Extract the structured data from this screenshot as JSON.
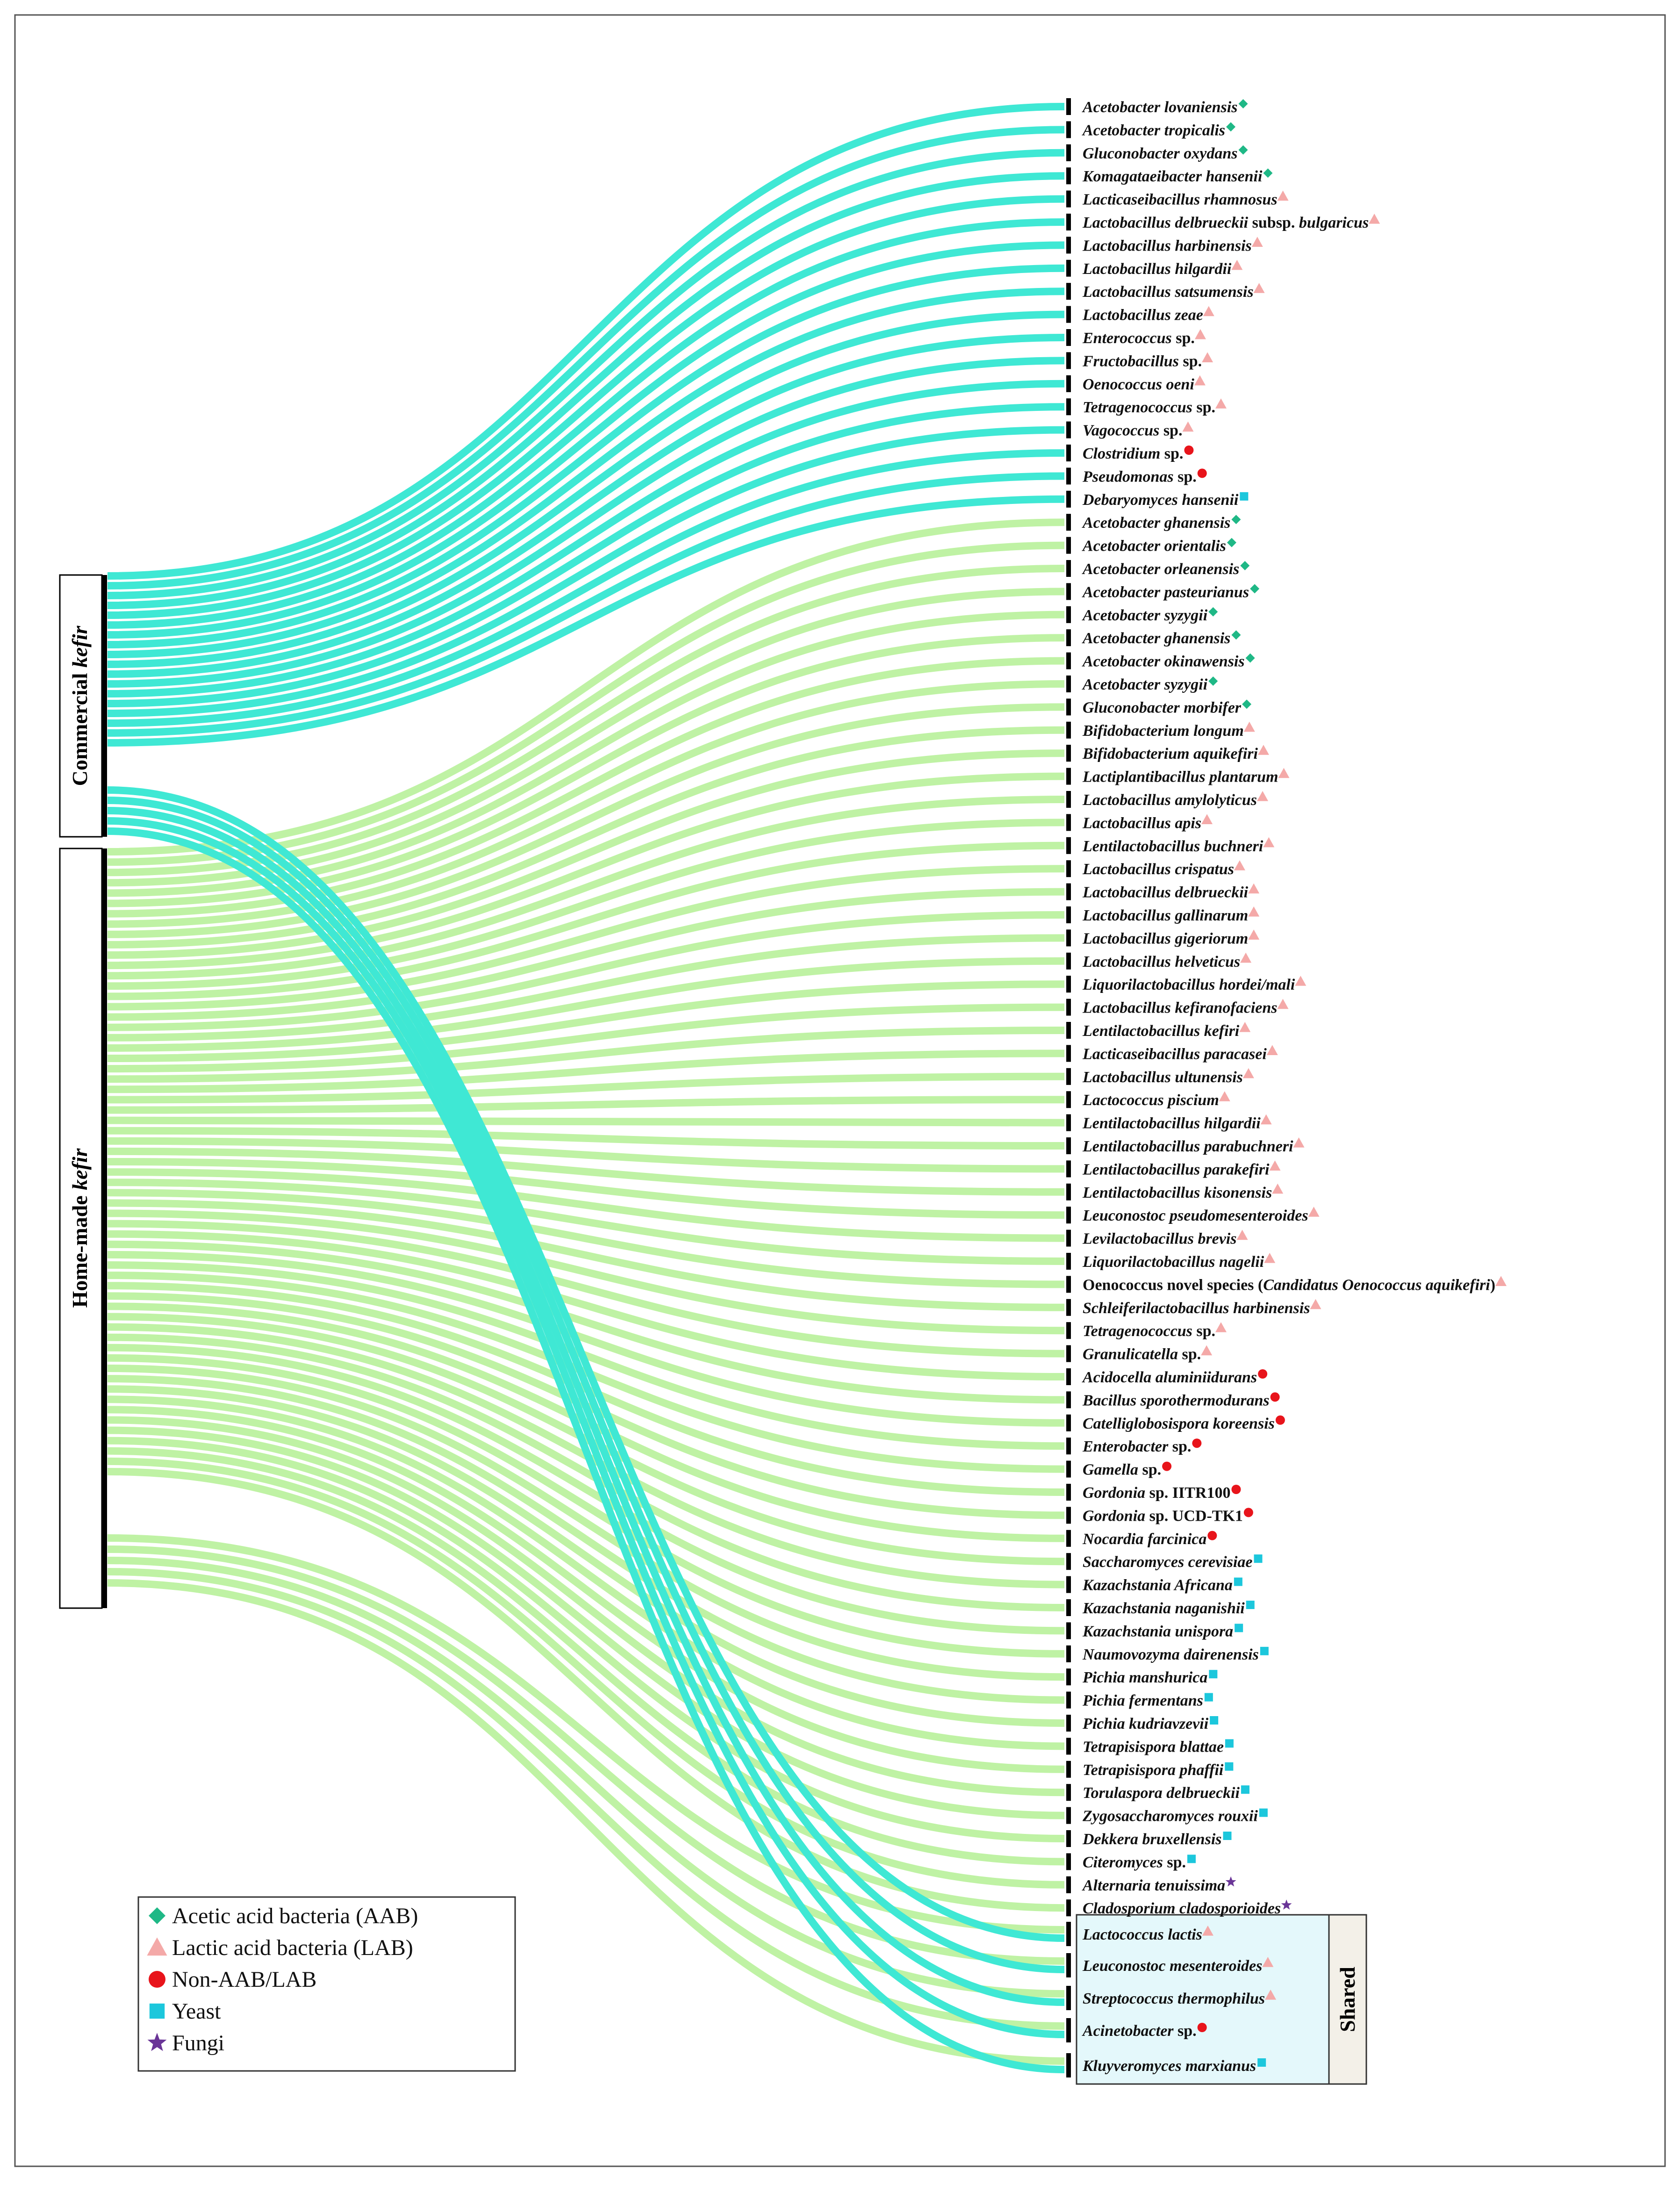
{
  "colors": {
    "commercial_flow": "#3fe8d4",
    "homemade_flow": "#bff2a4",
    "AAB": "#1fb886",
    "LAB": "#f4a9a8",
    "NonAAB": "#e8141b",
    "Yeast": "#1cc7dc",
    "Fungi": "#6a3597",
    "shared_box": "#e4f8fb",
    "shared_tag": "#f3f0e8"
  },
  "groups": {
    "commercial": {
      "label_prefix": "Commercial ",
      "label_italic": "kefir"
    },
    "homemade": {
      "label_prefix": "Home-made ",
      "label_italic": "kefir"
    }
  },
  "shared_label": "Shared",
  "legend": [
    {
      "key": "AAB",
      "shape": "diamond",
      "label": "Acetic acid bacteria (AAB)"
    },
    {
      "key": "LAB",
      "shape": "triangle",
      "label": "Lactic acid bacteria (LAB)"
    },
    {
      "key": "NonAAB",
      "shape": "circle",
      "label": "Non-AAB/LAB"
    },
    {
      "key": "Yeast",
      "shape": "square",
      "label": "Yeast"
    },
    {
      "key": "Fungi",
      "shape": "star",
      "label": "Fungi"
    }
  ],
  "species": [
    {
      "parts": [
        {
          "t": "Acetobacter lovaniensis",
          "i": true
        }
      ],
      "cat": "AAB",
      "src": "commercial"
    },
    {
      "parts": [
        {
          "t": "Acetobacter tropicalis",
          "i": true
        }
      ],
      "cat": "AAB",
      "src": "commercial"
    },
    {
      "parts": [
        {
          "t": "Gluconobacter oxydans",
          "i": true
        }
      ],
      "cat": "AAB",
      "src": "commercial"
    },
    {
      "parts": [
        {
          "t": "Komagataeibacter hansenii",
          "i": true
        }
      ],
      "cat": "AAB",
      "src": "commercial"
    },
    {
      "parts": [
        {
          "t": "Lacticaseibacillus rhamnosus",
          "i": true
        }
      ],
      "cat": "LAB",
      "src": "commercial"
    },
    {
      "parts": [
        {
          "t": "Lactobacillus delbrueckii",
          "i": true
        },
        {
          "t": " subsp. ",
          "i": false
        },
        {
          "t": "bulgaricus",
          "i": true
        }
      ],
      "cat": "LAB",
      "src": "commercial"
    },
    {
      "parts": [
        {
          "t": "Lactobacillus harbinensis",
          "i": true
        }
      ],
      "cat": "LAB",
      "src": "commercial"
    },
    {
      "parts": [
        {
          "t": "Lactobacillus hilgardii",
          "i": true
        }
      ],
      "cat": "LAB",
      "src": "commercial"
    },
    {
      "parts": [
        {
          "t": "Lactobacillus satsumensis",
          "i": true
        }
      ],
      "cat": "LAB",
      "src": "commercial"
    },
    {
      "parts": [
        {
          "t": "Lactobacillus zeae",
          "i": true
        }
      ],
      "cat": "LAB",
      "src": "commercial"
    },
    {
      "parts": [
        {
          "t": "Enterococcus",
          "i": true
        },
        {
          "t": " sp.",
          "i": false
        }
      ],
      "cat": "LAB",
      "src": "commercial"
    },
    {
      "parts": [
        {
          "t": "Fructobacillus",
          "i": true
        },
        {
          "t": " sp.",
          "i": false
        }
      ],
      "cat": "LAB",
      "src": "commercial"
    },
    {
      "parts": [
        {
          "t": "Oenococcus oeni",
          "i": true
        }
      ],
      "cat": "LAB",
      "src": "commercial"
    },
    {
      "parts": [
        {
          "t": "Tetragenococcus",
          "i": true
        },
        {
          "t": " sp.",
          "i": false
        }
      ],
      "cat": "LAB",
      "src": "commercial"
    },
    {
      "parts": [
        {
          "t": "Vagococcus",
          "i": true
        },
        {
          "t": " sp.",
          "i": false
        }
      ],
      "cat": "LAB",
      "src": "commercial"
    },
    {
      "parts": [
        {
          "t": "Clostridium",
          "i": true
        },
        {
          "t": " sp.",
          "i": false
        }
      ],
      "cat": "NonAAB",
      "src": "commercial"
    },
    {
      "parts": [
        {
          "t": "Pseudomonas",
          "i": true
        },
        {
          "t": " sp.",
          "i": false
        }
      ],
      "cat": "NonAAB",
      "src": "commercial"
    },
    {
      "parts": [
        {
          "t": "Debaryomyces hansenii",
          "i": true
        }
      ],
      "cat": "Yeast",
      "src": "commercial"
    },
    {
      "parts": [
        {
          "t": "Acetobacter ghanensis",
          "i": true
        }
      ],
      "cat": "AAB",
      "src": "homemade"
    },
    {
      "parts": [
        {
          "t": "Acetobacter orientalis",
          "i": true
        }
      ],
      "cat": "AAB",
      "src": "homemade"
    },
    {
      "parts": [
        {
          "t": "Acetobacter orleanensis",
          "i": true
        }
      ],
      "cat": "AAB",
      "src": "homemade"
    },
    {
      "parts": [
        {
          "t": "Acetobacter pasteurianus",
          "i": true
        }
      ],
      "cat": "AAB",
      "src": "homemade"
    },
    {
      "parts": [
        {
          "t": "Acetobacter syzygii",
          "i": true
        }
      ],
      "cat": "AAB",
      "src": "homemade"
    },
    {
      "parts": [
        {
          "t": "Acetobacter ghanensis",
          "i": true
        }
      ],
      "cat": "AAB",
      "src": "homemade"
    },
    {
      "parts": [
        {
          "t": "Acetobacter okinawensis",
          "i": true
        }
      ],
      "cat": "AAB",
      "src": "homemade"
    },
    {
      "parts": [
        {
          "t": "Acetobacter syzygii",
          "i": true
        }
      ],
      "cat": "AAB",
      "src": "homemade"
    },
    {
      "parts": [
        {
          "t": "Gluconobacter morbifer",
          "i": true
        }
      ],
      "cat": "AAB",
      "src": "homemade"
    },
    {
      "parts": [
        {
          "t": "Bifidobacterium longum",
          "i": true
        }
      ],
      "cat": "LAB",
      "src": "homemade"
    },
    {
      "parts": [
        {
          "t": "Bifidobacterium aquikefiri",
          "i": true
        }
      ],
      "cat": "LAB",
      "src": "homemade"
    },
    {
      "parts": [
        {
          "t": "Lactiplantibacillus plantarum",
          "i": true
        }
      ],
      "cat": "LAB",
      "src": "homemade"
    },
    {
      "parts": [
        {
          "t": "Lactobacillus amylolyticus",
          "i": true
        }
      ],
      "cat": "LAB",
      "src": "homemade"
    },
    {
      "parts": [
        {
          "t": "Lactobacillus apis",
          "i": true
        }
      ],
      "cat": "LAB",
      "src": "homemade"
    },
    {
      "parts": [
        {
          "t": "Lentilactobacillus buchneri",
          "i": true
        }
      ],
      "cat": "LAB",
      "src": "homemade"
    },
    {
      "parts": [
        {
          "t": "Lactobacillus crispatus",
          "i": true
        }
      ],
      "cat": "LAB",
      "src": "homemade"
    },
    {
      "parts": [
        {
          "t": "Lactobacillus delbrueckii",
          "i": true
        }
      ],
      "cat": "LAB",
      "src": "homemade"
    },
    {
      "parts": [
        {
          "t": "Lactobacillus gallinarum",
          "i": true
        }
      ],
      "cat": "LAB",
      "src": "homemade"
    },
    {
      "parts": [
        {
          "t": "Lactobacillus gigeriorum",
          "i": true
        }
      ],
      "cat": "LAB",
      "src": "homemade"
    },
    {
      "parts": [
        {
          "t": "Lactobacillus helveticus",
          "i": true
        }
      ],
      "cat": "LAB",
      "src": "homemade"
    },
    {
      "parts": [
        {
          "t": "Liquorilactobacillus hordei/mali",
          "i": true
        }
      ],
      "cat": "LAB",
      "src": "homemade"
    },
    {
      "parts": [
        {
          "t": "Lactobacillus kefiranofaciens",
          "i": true
        }
      ],
      "cat": "LAB",
      "src": "homemade"
    },
    {
      "parts": [
        {
          "t": "Lentilactobacillus kefiri",
          "i": true
        }
      ],
      "cat": "LAB",
      "src": "homemade"
    },
    {
      "parts": [
        {
          "t": "Lacticaseibacillus paracasei",
          "i": true
        }
      ],
      "cat": "LAB",
      "src": "homemade"
    },
    {
      "parts": [
        {
          "t": "Lactobacillus ultunensis",
          "i": true
        }
      ],
      "cat": "LAB",
      "src": "homemade"
    },
    {
      "parts": [
        {
          "t": "Lactococcus piscium",
          "i": true
        }
      ],
      "cat": "LAB",
      "src": "homemade"
    },
    {
      "parts": [
        {
          "t": "Lentilactobacillus hilgardii",
          "i": true
        }
      ],
      "cat": "LAB",
      "src": "homemade"
    },
    {
      "parts": [
        {
          "t": "Lentilactobacillus parabuchneri",
          "i": true
        }
      ],
      "cat": "LAB",
      "src": "homemade"
    },
    {
      "parts": [
        {
          "t": "Lentilactobacillus parakefiri",
          "i": true
        }
      ],
      "cat": "LAB",
      "src": "homemade"
    },
    {
      "parts": [
        {
          "t": "Lentilactobacillus kisonensis",
          "i": true
        }
      ],
      "cat": "LAB",
      "src": "homemade"
    },
    {
      "parts": [
        {
          "t": "Leuconostoc pseudomesenteroides",
          "i": true
        }
      ],
      "cat": "LAB",
      "src": "homemade"
    },
    {
      "parts": [
        {
          "t": "Levilactobacillus brevis",
          "i": true
        }
      ],
      "cat": "LAB",
      "src": "homemade"
    },
    {
      "parts": [
        {
          "t": "Liquorilactobacillus nagelii",
          "i": true
        }
      ],
      "cat": "LAB",
      "src": "homemade"
    },
    {
      "parts": [
        {
          "t": "Oenococcus novel species (",
          "i": false
        },
        {
          "t": "Candidatus Oenococcus aquikefiri",
          "i": true
        },
        {
          "t": ")",
          "i": false
        }
      ],
      "cat": "LAB",
      "src": "homemade"
    },
    {
      "parts": [
        {
          "t": "Schleiferilactobacillus harbinensis",
          "i": true
        }
      ],
      "cat": "LAB",
      "src": "homemade"
    },
    {
      "parts": [
        {
          "t": "Tetragenococcus",
          "i": true
        },
        {
          "t": " sp.",
          "i": false
        }
      ],
      "cat": "LAB",
      "src": "homemade"
    },
    {
      "parts": [
        {
          "t": "Granulicatella",
          "i": true
        },
        {
          "t": " sp.",
          "i": false
        }
      ],
      "cat": "LAB",
      "src": "homemade"
    },
    {
      "parts": [
        {
          "t": "Acidocella aluminiidurans",
          "i": true
        }
      ],
      "cat": "NonAAB",
      "src": "homemade"
    },
    {
      "parts": [
        {
          "t": "Bacillus sporothermodurans",
          "i": true
        }
      ],
      "cat": "NonAAB",
      "src": "homemade"
    },
    {
      "parts": [
        {
          "t": "Catelliglobosispora koreensis",
          "i": true
        }
      ],
      "cat": "NonAAB",
      "src": "homemade"
    },
    {
      "parts": [
        {
          "t": "Enterobacter",
          "i": true
        },
        {
          "t": " sp.",
          "i": false
        }
      ],
      "cat": "NonAAB",
      "src": "homemade"
    },
    {
      "parts": [
        {
          "t": "Gamella",
          "i": true
        },
        {
          "t": " sp.",
          "i": false
        }
      ],
      "cat": "NonAAB",
      "src": "homemade"
    },
    {
      "parts": [
        {
          "t": "Gordonia",
          "i": true
        },
        {
          "t": " sp. IITR100",
          "i": false
        }
      ],
      "cat": "NonAAB",
      "src": "homemade"
    },
    {
      "parts": [
        {
          "t": "Gordonia",
          "i": true
        },
        {
          "t": " sp. UCD-TK1",
          "i": false
        }
      ],
      "cat": "NonAAB",
      "src": "homemade"
    },
    {
      "parts": [
        {
          "t": "Nocardia farcinica",
          "i": true
        }
      ],
      "cat": "NonAAB",
      "src": "homemade"
    },
    {
      "parts": [
        {
          "t": "Saccharomyces cerevisiae",
          "i": true
        }
      ],
      "cat": "Yeast",
      "src": "homemade"
    },
    {
      "parts": [
        {
          "t": "Kazachstania Africana",
          "i": true
        }
      ],
      "cat": "Yeast",
      "src": "homemade"
    },
    {
      "parts": [
        {
          "t": "Kazachstania naganishii",
          "i": true
        }
      ],
      "cat": "Yeast",
      "src": "homemade"
    },
    {
      "parts": [
        {
          "t": "Kazachstania unispora",
          "i": true
        }
      ],
      "cat": "Yeast",
      "src": "homemade"
    },
    {
      "parts": [
        {
          "t": "Naumovozyma dairenensis",
          "i": true
        }
      ],
      "cat": "Yeast",
      "src": "homemade"
    },
    {
      "parts": [
        {
          "t": "Pichia manshurica",
          "i": true
        }
      ],
      "cat": "Yeast",
      "src": "homemade"
    },
    {
      "parts": [
        {
          "t": "Pichia fermentans",
          "i": true
        }
      ],
      "cat": "Yeast",
      "src": "homemade"
    },
    {
      "parts": [
        {
          "t": "Pichia kudriavzevii",
          "i": true
        }
      ],
      "cat": "Yeast",
      "src": "homemade"
    },
    {
      "parts": [
        {
          "t": "Tetrapisispora blattae",
          "i": true
        }
      ],
      "cat": "Yeast",
      "src": "homemade"
    },
    {
      "parts": [
        {
          "t": "Tetrapisispora phaffii",
          "i": true
        }
      ],
      "cat": "Yeast",
      "src": "homemade"
    },
    {
      "parts": [
        {
          "t": "Torulaspora delbrueckii",
          "i": true
        }
      ],
      "cat": "Yeast",
      "src": "homemade"
    },
    {
      "parts": [
        {
          "t": "Zygosaccharomyces rouxii",
          "i": true
        }
      ],
      "cat": "Yeast",
      "src": "homemade"
    },
    {
      "parts": [
        {
          "t": "Dekkera bruxellensis",
          "i": true
        }
      ],
      "cat": "Yeast",
      "src": "homemade"
    },
    {
      "parts": [
        {
          "t": "Citeromyces",
          "i": true
        },
        {
          "t": " sp.",
          "i": false
        }
      ],
      "cat": "Yeast",
      "src": "homemade"
    },
    {
      "parts": [
        {
          "t": "Alternaria tenuissima",
          "i": true
        }
      ],
      "cat": "Fungi",
      "src": "homemade"
    },
    {
      "parts": [
        {
          "t": "Cladosporium cladosporioides",
          "i": true
        }
      ],
      "cat": "Fungi",
      "src": "homemade"
    }
  ],
  "shared": [
    {
      "parts": [
        {
          "t": "Lactococcus lactis",
          "i": true
        }
      ],
      "cat": "LAB"
    },
    {
      "parts": [
        {
          "t": "Leuconostoc mesenteroides",
          "i": true
        }
      ],
      "cat": "LAB"
    },
    {
      "parts": [
        {
          "t": "Streptococcus thermophilus",
          "i": true
        }
      ],
      "cat": "LAB"
    },
    {
      "parts": [
        {
          "t": "Acinetobacter",
          "i": true
        },
        {
          "t": " sp.",
          "i": false
        }
      ],
      "cat": "NonAAB"
    },
    {
      "parts": [
        {
          "t": "Kluyveromyces marxianus",
          "i": true
        }
      ],
      "cat": "Yeast"
    }
  ]
}
